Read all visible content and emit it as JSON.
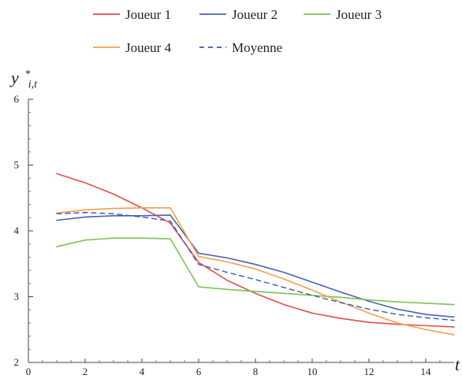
{
  "chart_data": {
    "type": "line",
    "xlabel": "t",
    "ylabel": "y*i,t",
    "xlim": [
      0,
      15
    ],
    "ylim": [
      2,
      6
    ],
    "xticks": [
      0,
      2,
      4,
      6,
      8,
      10,
      12,
      14
    ],
    "yticks": [
      2,
      3,
      4,
      5,
      6
    ],
    "xtick_labels": [
      "0",
      "2",
      "4",
      "6",
      "8",
      "10",
      "12",
      "14"
    ],
    "ytick_labels": [
      "2",
      "3",
      "4",
      "5",
      "6"
    ],
    "legend_position": "top",
    "grid": false,
    "series": [
      {
        "name": "Joueur 1",
        "color": "#e34b4b",
        "dash": "solid",
        "x": [
          1,
          2,
          3,
          4,
          5,
          6,
          7,
          8,
          9,
          10,
          11,
          12,
          13,
          14,
          15
        ],
        "values": [
          4.87,
          4.73,
          4.56,
          4.35,
          4.12,
          3.52,
          3.25,
          3.05,
          2.88,
          2.75,
          2.67,
          2.61,
          2.58,
          2.56,
          2.54
        ]
      },
      {
        "name": "Joueur 2",
        "color": "#4861b0",
        "dash": "solid",
        "x": [
          1,
          2,
          3,
          4,
          5,
          6,
          7,
          8,
          9,
          10,
          11,
          12,
          13,
          14,
          15
        ],
        "values": [
          4.16,
          4.21,
          4.23,
          4.23,
          4.24,
          3.66,
          3.59,
          3.49,
          3.37,
          3.22,
          3.07,
          2.93,
          2.81,
          2.73,
          2.69
        ]
      },
      {
        "name": "Joueur 3",
        "color": "#78c455",
        "dash": "solid",
        "x": [
          1,
          2,
          3,
          4,
          5,
          6,
          7,
          8,
          9,
          10,
          11,
          12,
          13,
          14,
          15
        ],
        "values": [
          3.76,
          3.86,
          3.89,
          3.89,
          3.88,
          3.15,
          3.11,
          3.08,
          3.05,
          3.02,
          2.99,
          2.95,
          2.92,
          2.9,
          2.88
        ]
      },
      {
        "name": "Joueur 4",
        "color": "#f0a04a",
        "dash": "solid",
        "x": [
          1,
          2,
          3,
          4,
          5,
          6,
          7,
          8,
          9,
          10,
          11,
          12,
          13,
          14,
          15
        ],
        "values": [
          4.27,
          4.32,
          4.34,
          4.35,
          4.35,
          3.61,
          3.53,
          3.42,
          3.27,
          3.1,
          2.92,
          2.75,
          2.6,
          2.5,
          2.42
        ]
      },
      {
        "name": "Moyenne",
        "color": "#3f58b7",
        "dash": "dashed",
        "x": [
          1,
          2,
          3,
          4,
          5,
          6,
          7,
          8,
          9,
          10,
          11,
          12,
          13,
          14,
          15
        ],
        "values": [
          4.26,
          4.28,
          4.26,
          4.21,
          4.15,
          3.49,
          3.37,
          3.26,
          3.14,
          3.02,
          2.91,
          2.81,
          2.73,
          2.68,
          2.64
        ]
      }
    ]
  }
}
